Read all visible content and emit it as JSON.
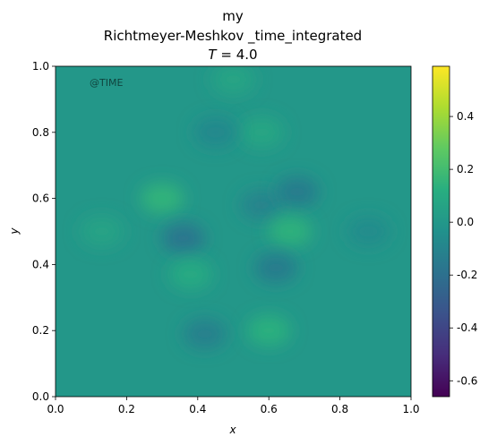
{
  "chart_data": {
    "type": "heatmap",
    "title_lines": [
      "my",
      "Richtmeyer-Meshkov _time_integrated",
      "T = 4.0"
    ],
    "title_math": {
      "italic": "T",
      "rest": " = 4.0"
    },
    "watermark": "@TIME",
    "xlabel": "x",
    "ylabel": "y",
    "xlim": [
      0.0,
      1.0
    ],
    "ylim": [
      0.0,
      1.0
    ],
    "xticks": [
      "0.0",
      "0.2",
      "0.4",
      "0.6",
      "0.8",
      "1.0"
    ],
    "yticks": [
      "0.0",
      "0.2",
      "0.4",
      "0.6",
      "0.8",
      "1.0"
    ],
    "colorbar": {
      "colormap": "viridis",
      "range": [
        -0.66,
        0.59
      ],
      "ticks": [
        "-0.6",
        "-0.4",
        "-0.2",
        "0.0",
        "0.2",
        "0.4"
      ],
      "tick_values": [
        -0.6,
        -0.4,
        -0.2,
        0.0,
        0.2,
        0.4
      ]
    },
    "field_features": [
      {
        "x": 0.3,
        "y": 0.6,
        "value": 0.15
      },
      {
        "x": 0.36,
        "y": 0.48,
        "value": -0.17
      },
      {
        "x": 0.38,
        "y": 0.37,
        "value": 0.1
      },
      {
        "x": 0.58,
        "y": 0.58,
        "value": -0.1
      },
      {
        "x": 0.68,
        "y": 0.62,
        "value": -0.14
      },
      {
        "x": 0.66,
        "y": 0.5,
        "value": 0.14
      },
      {
        "x": 0.62,
        "y": 0.39,
        "value": -0.14
      },
      {
        "x": 0.6,
        "y": 0.2,
        "value": 0.13
      },
      {
        "x": 0.42,
        "y": 0.19,
        "value": -0.12
      },
      {
        "x": 0.58,
        "y": 0.8,
        "value": 0.08
      },
      {
        "x": 0.45,
        "y": 0.8,
        "value": -0.08
      },
      {
        "x": 0.88,
        "y": 0.5,
        "value": -0.06
      },
      {
        "x": 0.13,
        "y": 0.5,
        "value": 0.06
      },
      {
        "x": 0.5,
        "y": 0.96,
        "value": 0.07
      }
    ],
    "background_value": 0.0
  }
}
